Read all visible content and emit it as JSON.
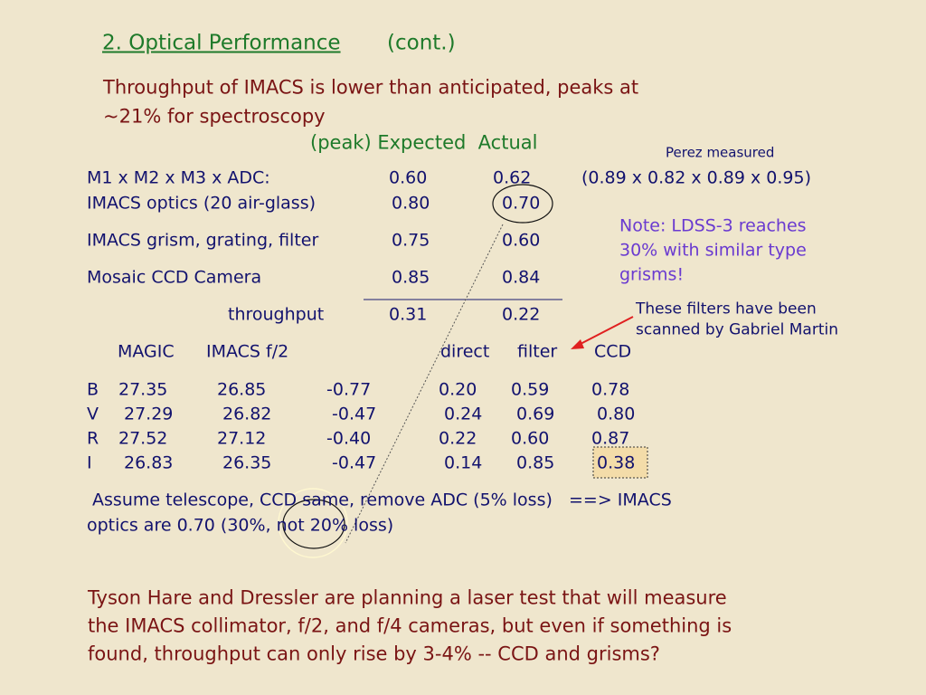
{
  "title": {
    "link": "2. Optical Performance",
    "rest": "(cont.)"
  },
  "subtitle": [
    "Throughput of IMACS is lower than anticipated, peaks at",
    "~21% for spectroscopy"
  ],
  "header": "(peak) Expected  Actual",
  "perez_label": "Perez measured",
  "perez_product": "(0.89 x 0.82 x 0.89 x 0.95)",
  "throughput_rows": [
    [
      "M1 x M2 x M3 x ADC:",
      "0.60",
      "0.62"
    ],
    [
      "IMACS optics (20 air-glass)",
      "0.80",
      "0.70"
    ],
    [
      "IMACS grism, grating, filter",
      "0.75",
      "0.60"
    ],
    [
      "Mosaic CCD Camera",
      "0.85",
      "0.84"
    ],
    [
      "throughput",
      "0.31",
      "0.22"
    ]
  ],
  "note": [
    "Note: LDSS-3 reaches",
    "30% with similar type",
    "grisms!"
  ],
  "callout": [
    "These filters have been",
    "scanned by Gabriel Martin"
  ],
  "mag_table": {
    "header": [
      "MAGIC",
      "IMACS f/2",
      "direct",
      "filter",
      "CCD"
    ],
    "rows": [
      [
        "B",
        "27.35",
        "26.85",
        "-0.77",
        "0.20",
        "0.59",
        "0.78"
      ],
      [
        "V",
        "27.29",
        "26.82",
        "-0.47",
        "0.24",
        "0.69",
        "0.80"
      ],
      [
        "R",
        "27.52",
        "27.12",
        "-0.40",
        "0.22",
        "0.60",
        "0.87"
      ],
      [
        "I",
        "26.83",
        "26.35",
        "-0.47",
        "0.14",
        "0.85",
        "0.38"
      ]
    ]
  },
  "assumption": [
    " Assume telescope, CCD same, remove ADC (5% loss)   ==> IMACS",
    "optics are 0.70 (30%, not 20% loss)"
  ],
  "footer": [
    "Tyson Hare and Dressler are planning a laser test that will measure",
    "the IMACS collimator, f/2, and f/4 cameras, but even if something is",
    "found, throughput can only rise by 3-4% -- CCD and grisms?"
  ]
}
